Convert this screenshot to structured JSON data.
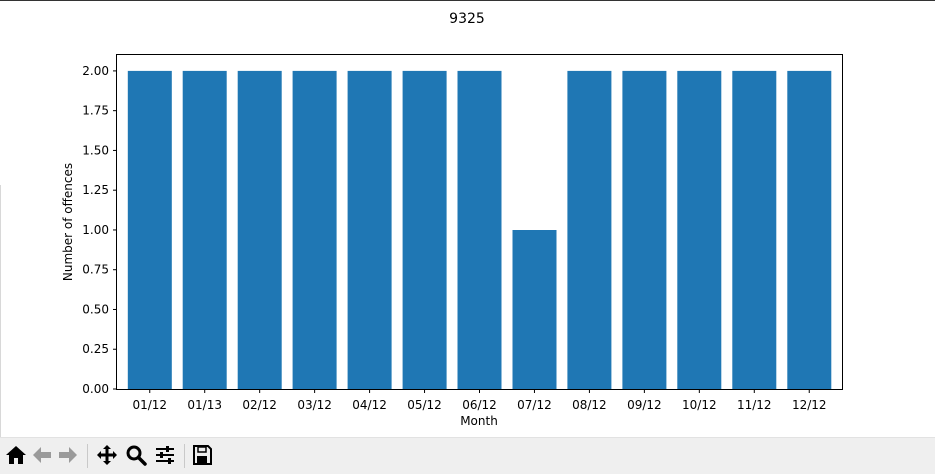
{
  "chart_data": {
    "type": "bar",
    "title": "9325",
    "xlabel": "Month",
    "ylabel": "Number of offences",
    "categories": [
      "01/12",
      "01/13",
      "02/12",
      "03/12",
      "04/12",
      "05/12",
      "06/12",
      "07/12",
      "08/12",
      "09/12",
      "10/12",
      "11/12",
      "12/12"
    ],
    "values": [
      2,
      2,
      2,
      2,
      2,
      2,
      2,
      1,
      2,
      2,
      2,
      2,
      2
    ],
    "ylim": [
      0,
      2.1
    ],
    "yticks": [
      "0.00",
      "0.25",
      "0.50",
      "0.75",
      "1.00",
      "1.25",
      "1.50",
      "1.75",
      "2.00"
    ],
    "grid": false,
    "bar_color": "#1f77b4"
  },
  "toolbar": {
    "buttons": [
      {
        "name": "home-button",
        "icon": "home-icon"
      },
      {
        "name": "back-button",
        "icon": "arrow-left-icon"
      },
      {
        "name": "forward-button",
        "icon": "arrow-right-icon"
      },
      {
        "name": "pan-button",
        "icon": "move-icon"
      },
      {
        "name": "zoom-button",
        "icon": "magnifier-icon"
      },
      {
        "name": "configure-subplots-button",
        "icon": "sliders-icon"
      },
      {
        "name": "save-button",
        "icon": "floppy-disk-icon"
      }
    ]
  }
}
